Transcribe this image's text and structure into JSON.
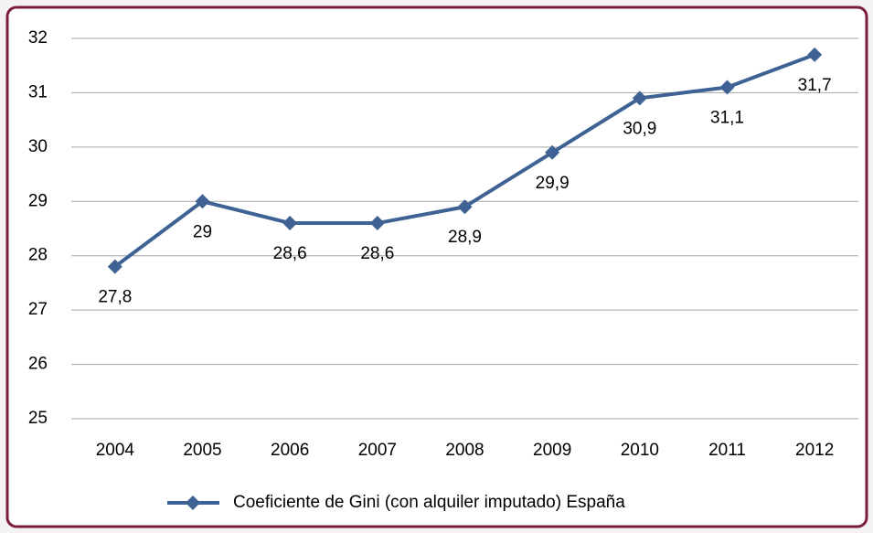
{
  "chart_data": {
    "type": "line",
    "categories": [
      "2004",
      "2005",
      "2006",
      "2007",
      "2008",
      "2009",
      "2010",
      "2011",
      "2012"
    ],
    "series": [
      {
        "name": "Coeficiente de Gini (con alquiler imputado) España",
        "color": "#3d6293",
        "values": [
          27.8,
          29,
          28.6,
          28.6,
          28.9,
          29.9,
          30.9,
          31.1,
          31.7
        ],
        "value_labels": [
          "27,8",
          "29",
          "28,6",
          "28,6",
          "28,9",
          "29,9",
          "30,9",
          "31,1",
          "31,7"
        ]
      }
    ],
    "ylim": [
      25,
      32
    ],
    "yticks": [
      25,
      26,
      27,
      28,
      29,
      30,
      31,
      32
    ],
    "grid": true,
    "legend": "bottom"
  }
}
